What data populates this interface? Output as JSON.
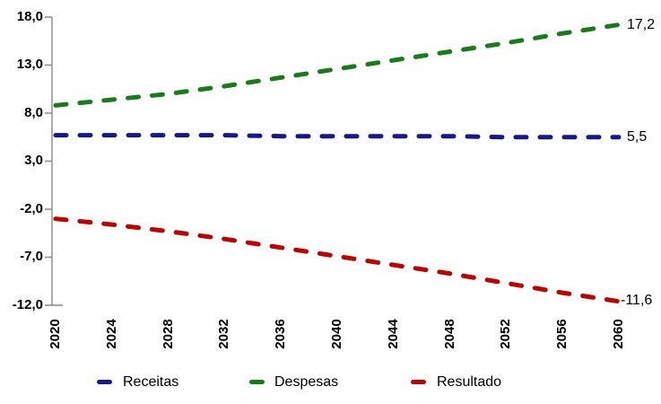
{
  "chart_data": {
    "type": "line",
    "title": "",
    "xlabel": "",
    "ylabel": "",
    "grid": false,
    "legend_position": "bottom",
    "ylim": [
      -12,
      18
    ],
    "y_ticks": [
      18,
      13,
      8,
      3,
      -2,
      -7,
      -12
    ],
    "y_tick_labels": [
      "18,0",
      "13,0",
      "8,0",
      "3,0",
      "-2,0",
      "-7,0",
      "-12,0"
    ],
    "x": [
      2020,
      2024,
      2028,
      2032,
      2036,
      2040,
      2044,
      2048,
      2052,
      2056,
      2060
    ],
    "x_tick_labels": [
      "2020",
      "2024",
      "2028",
      "2032",
      "2036",
      "2040",
      "2044",
      "2048",
      "2052",
      "2056",
      "2060"
    ],
    "series": [
      {
        "name": "Receitas",
        "color": "#18188c",
        "dash": "dashed",
        "values": [
          5.7,
          5.7,
          5.7,
          5.7,
          5.6,
          5.6,
          5.6,
          5.6,
          5.5,
          5.5,
          5.5
        ],
        "end_label": "5,5"
      },
      {
        "name": "Despesas",
        "color": "#1b7a1b",
        "dash": "dashed",
        "values": [
          8.8,
          9.4,
          10.0,
          10.8,
          11.7,
          12.6,
          13.5,
          14.4,
          15.3,
          16.3,
          17.2
        ],
        "end_label": "17,2"
      },
      {
        "name": "Resultado",
        "color": "#c00000",
        "dash": "dashed",
        "values": [
          -3.0,
          -3.6,
          -4.3,
          -5.1,
          -6.0,
          -6.9,
          -7.8,
          -8.7,
          -9.7,
          -10.7,
          -11.6
        ],
        "end_label": "-11,6"
      }
    ],
    "axis_color": "#8a8a8a"
  }
}
